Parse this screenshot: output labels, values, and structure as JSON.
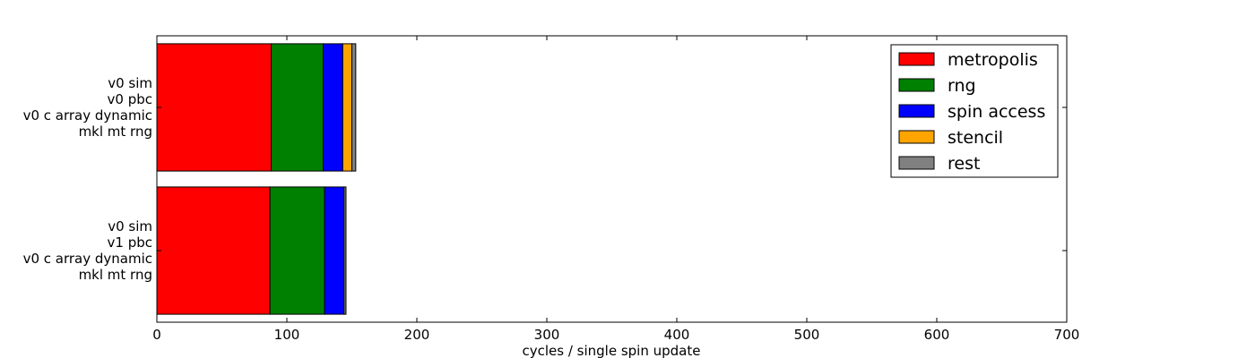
{
  "chart_data": {
    "type": "bar",
    "orientation": "horizontal",
    "stacked": true,
    "categories": [
      [
        "v0 sim",
        "v0 pbc",
        "v0 c array dynamic",
        "mkl mt rng"
      ],
      [
        "v0 sim",
        "v1 pbc",
        "v0 c array dynamic",
        "mkl mt rng"
      ]
    ],
    "series": [
      {
        "name": "metropolis",
        "color": "#ff0000",
        "values": [
          88,
          87
        ]
      },
      {
        "name": "rng",
        "color": "#008000",
        "values": [
          40,
          42
        ]
      },
      {
        "name": "spin access",
        "color": "#0000ff",
        "values": [
          15,
          15
        ]
      },
      {
        "name": "stencil",
        "color": "#ffa500",
        "values": [
          7,
          0
        ]
      },
      {
        "name": "rest",
        "color": "#808080",
        "values": [
          3,
          1.5
        ]
      }
    ],
    "title": "",
    "xlabel": "cycles / single spin update",
    "ylabel": "",
    "xlim": [
      0,
      700
    ],
    "xticks": [
      0,
      100,
      200,
      300,
      400,
      500,
      600,
      700
    ],
    "grid": false,
    "legend_position": "top-right"
  }
}
